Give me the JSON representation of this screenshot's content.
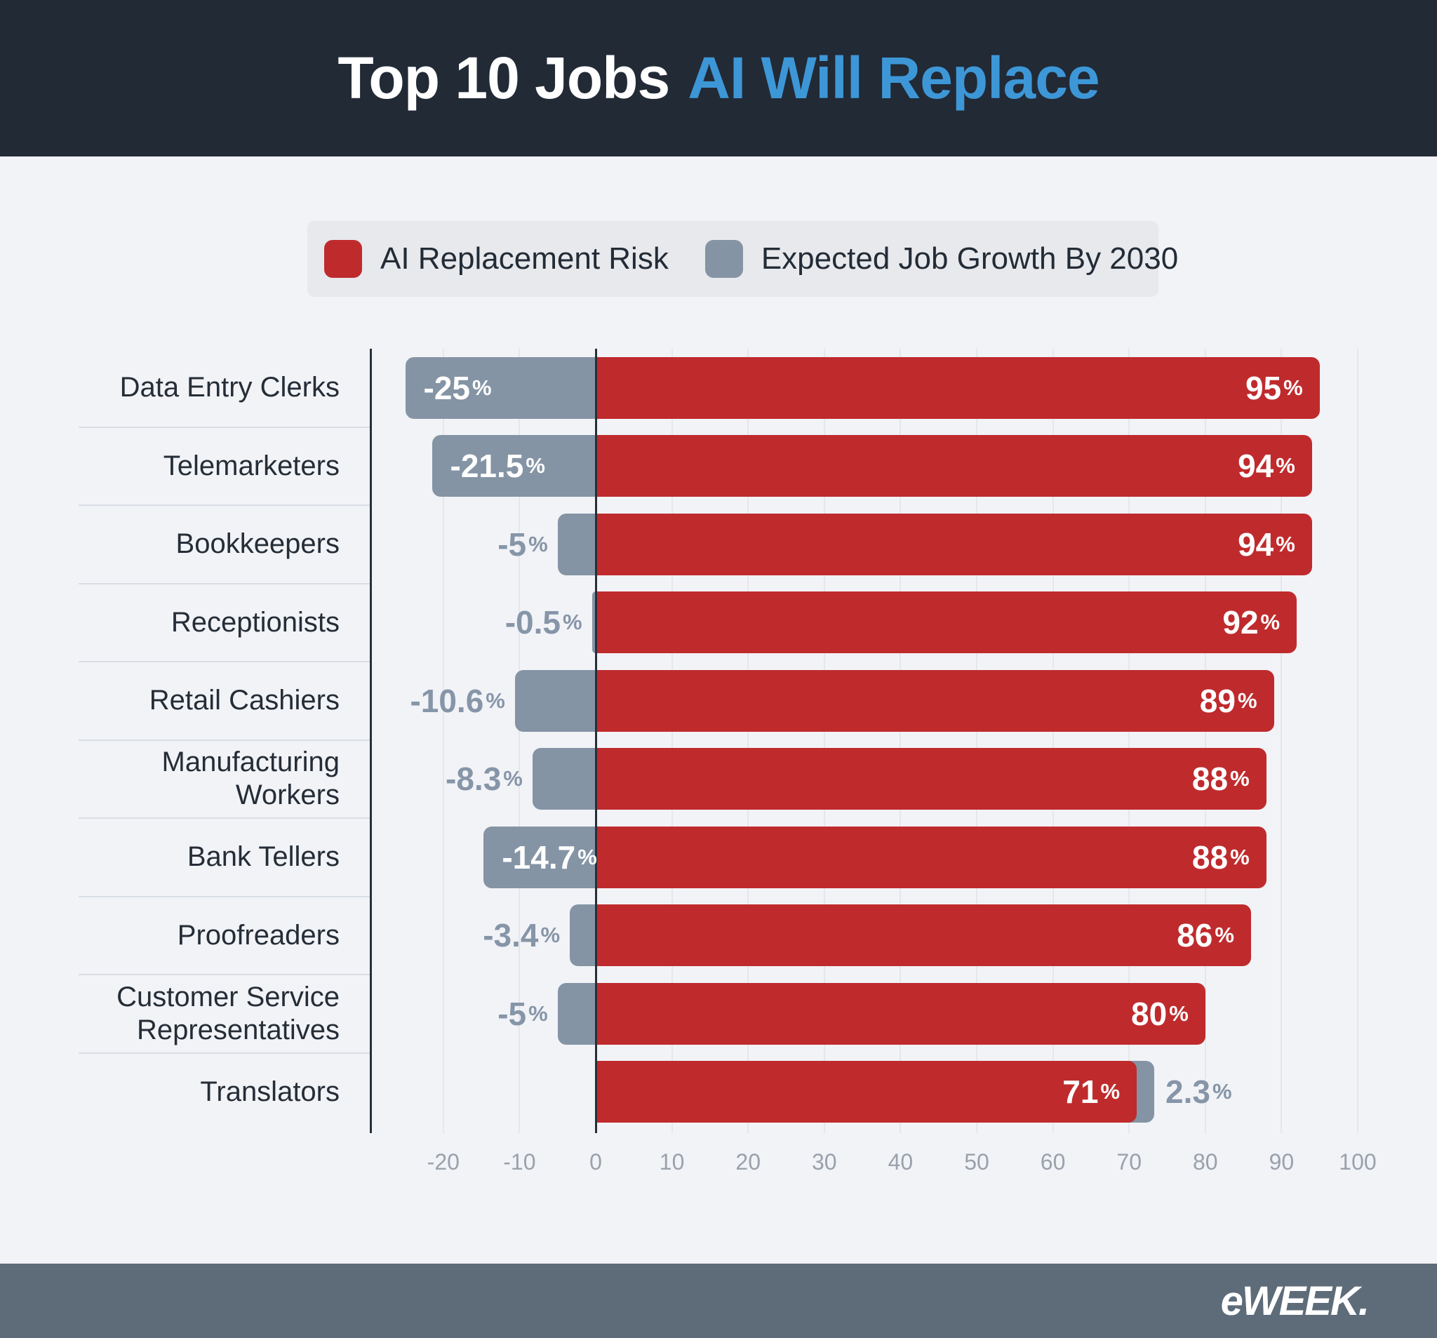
{
  "header": {
    "title_prefix": "Top 10 Jobs",
    "title_highlight": "AI Will Replace"
  },
  "legend": {
    "items": [
      {
        "label": "AI Replacement Risk",
        "color": "#bf2b2d"
      },
      {
        "label": "Expected Job Growth By 2030",
        "color": "#8494a5"
      }
    ]
  },
  "chart_data": {
    "type": "bar",
    "orientation": "horizontal",
    "title": "Top 10 Jobs AI Will Replace",
    "categories": [
      "Data Entry Clerks",
      "Telemarketers",
      "Bookkeepers",
      "Receptionists",
      "Retail Cashiers",
      "Manufacturing Workers",
      "Bank Tellers",
      "Proofreaders",
      "Customer Service Representatives",
      "Translators"
    ],
    "series": [
      {
        "name": "AI Replacement Risk",
        "color": "#bf2b2d",
        "unit": "%",
        "values": [
          95,
          94,
          94,
          92,
          89,
          88,
          88,
          86,
          80,
          71
        ]
      },
      {
        "name": "Expected Job Growth By 2030",
        "color": "#8494a5",
        "unit": "%",
        "values": [
          -25,
          -21.5,
          -5,
          -0.5,
          -10.6,
          -8.3,
          -14.7,
          -3.4,
          -5,
          2.3
        ]
      }
    ],
    "xlim": [
      -25,
      100
    ],
    "x_ticks": [
      -20,
      -10,
      0,
      10,
      20,
      30,
      40,
      50,
      60,
      70,
      80,
      90,
      100
    ],
    "grid": true,
    "legend_position": "top"
  },
  "colors": {
    "header_bg": "#222a36",
    "title_highlight": "#3d97d7",
    "page_bg": "#f2f3f7",
    "legend_bg": "#e7e9ed",
    "risk_bar": "#bf2b2d",
    "growth_bar": "#8494a5",
    "outside_value_text": "#8695a8",
    "axis_line": "#273039",
    "footer_bg": "#5e6b78"
  },
  "footer": {
    "brand": "eWEEK."
  }
}
